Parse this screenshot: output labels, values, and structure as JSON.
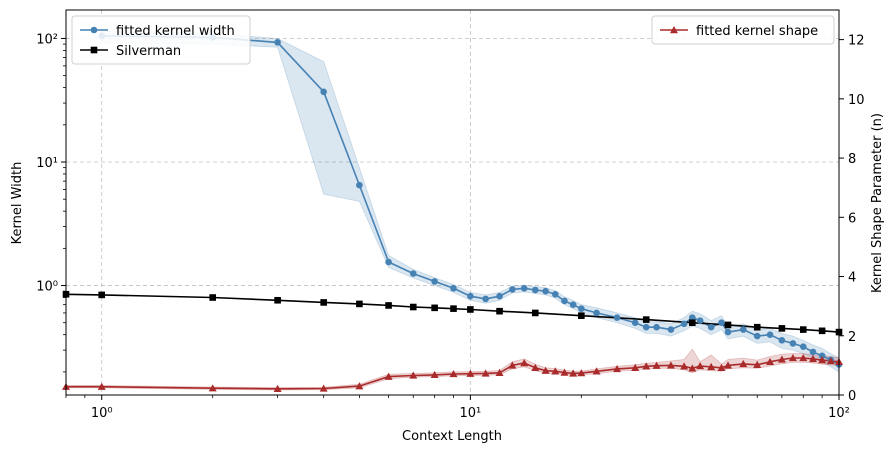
{
  "chart_data": {
    "type": "line",
    "xlabel": "Context Length",
    "ylabel_left": "Kernel Width",
    "ylabel_right": "Kernel Shape Parameter (n)",
    "x_scale": "log",
    "xlim": [
      0.8,
      100
    ],
    "y_left_scale": "log",
    "y_left_lim": [
      0.13,
      170
    ],
    "y_right_lim": [
      0,
      13
    ],
    "x_ticks": [
      {
        "v": 1,
        "label": "10⁰"
      },
      {
        "v": 10,
        "label": "10¹"
      },
      {
        "v": 100,
        "label": "10²"
      }
    ],
    "y_left_ticks": [
      {
        "v": 1,
        "label": "10⁰"
      },
      {
        "v": 10,
        "label": "10¹"
      },
      {
        "v": 100,
        "label": "10²"
      }
    ],
    "y_right_ticks": [
      0,
      2,
      4,
      6,
      8,
      10,
      12
    ],
    "grid": true,
    "legend_left": "top-left",
    "legend_right": "top-right",
    "series": [
      {
        "name": "fitted kernel width",
        "axis": "left",
        "color": "#4682b4",
        "marker": "circle",
        "x": [
          1,
          2,
          3,
          4,
          5,
          6,
          7,
          8,
          9,
          10,
          11,
          12,
          13,
          14,
          15,
          16,
          17,
          18,
          19,
          20,
          22,
          25,
          28,
          30,
          32,
          35,
          38,
          40,
          42,
          45,
          48,
          50,
          55,
          60,
          65,
          70,
          75,
          80,
          85,
          90,
          95,
          100
        ],
        "y": [
          105,
          102,
          93,
          37,
          6.5,
          1.55,
          1.25,
          1.08,
          0.95,
          0.82,
          0.78,
          0.82,
          0.93,
          0.95,
          0.92,
          0.9,
          0.85,
          0.75,
          0.7,
          0.65,
          0.6,
          0.55,
          0.5,
          0.46,
          0.46,
          0.44,
          0.49,
          0.55,
          0.52,
          0.46,
          0.5,
          0.42,
          0.44,
          0.39,
          0.4,
          0.36,
          0.34,
          0.32,
          0.29,
          0.27,
          0.25,
          0.23
        ],
        "band_low": [
          92,
          90,
          85,
          5.5,
          4.8,
          1.4,
          1.15,
          1.0,
          0.88,
          0.76,
          0.72,
          0.76,
          0.87,
          0.89,
          0.86,
          0.84,
          0.79,
          0.7,
          0.65,
          0.6,
          0.55,
          0.5,
          0.45,
          0.41,
          0.41,
          0.39,
          0.43,
          0.47,
          0.45,
          0.4,
          0.44,
          0.37,
          0.39,
          0.34,
          0.35,
          0.31,
          0.3,
          0.28,
          0.26,
          0.24,
          0.22,
          0.2
        ],
        "band_high": [
          115,
          110,
          100,
          65,
          9,
          1.75,
          1.35,
          1.16,
          1.02,
          0.88,
          0.84,
          0.88,
          0.99,
          1.01,
          0.98,
          0.96,
          0.91,
          0.81,
          0.76,
          0.7,
          0.66,
          0.6,
          0.55,
          0.51,
          0.51,
          0.49,
          0.55,
          0.62,
          0.59,
          0.52,
          0.57,
          0.47,
          0.49,
          0.44,
          0.45,
          0.41,
          0.39,
          0.36,
          0.33,
          0.31,
          0.28,
          0.26
        ]
      },
      {
        "name": "Silverman",
        "axis": "left",
        "color": "#000000",
        "marker": "square",
        "x": [
          0.8,
          1,
          2,
          3,
          4,
          5,
          6,
          7,
          8,
          9,
          10,
          12,
          15,
          20,
          30,
          40,
          50,
          60,
          70,
          80,
          90,
          100
        ],
        "y": [
          0.85,
          0.84,
          0.8,
          0.76,
          0.73,
          0.71,
          0.69,
          0.67,
          0.66,
          0.65,
          0.64,
          0.62,
          0.6,
          0.57,
          0.53,
          0.5,
          0.48,
          0.46,
          0.45,
          0.44,
          0.43,
          0.42
        ]
      },
      {
        "name": "fitted kernel shape",
        "axis": "right",
        "color": "#aa2b2b",
        "marker": "triangle",
        "x": [
          0.8,
          1,
          2,
          3,
          4,
          5,
          6,
          7,
          8,
          9,
          10,
          11,
          12,
          13,
          14,
          15,
          16,
          17,
          18,
          19,
          20,
          22,
          25,
          28,
          30,
          32,
          35,
          38,
          40,
          42,
          45,
          48,
          50,
          55,
          60,
          65,
          70,
          75,
          80,
          85,
          90,
          95,
          100
        ],
        "y": [
          0.28,
          0.28,
          0.23,
          0.21,
          0.22,
          0.3,
          0.62,
          0.66,
          0.68,
          0.71,
          0.72,
          0.73,
          0.75,
          1.0,
          1.08,
          0.92,
          0.82,
          0.8,
          0.76,
          0.73,
          0.74,
          0.8,
          0.88,
          0.92,
          0.97,
          0.99,
          1.0,
          0.97,
          0.9,
          0.98,
          0.95,
          0.92,
          1.0,
          1.05,
          1.02,
          1.12,
          1.2,
          1.25,
          1.25,
          1.22,
          1.18,
          1.15,
          1.12
        ],
        "band_low": [
          0.24,
          0.24,
          0.19,
          0.17,
          0.18,
          0.24,
          0.55,
          0.6,
          0.62,
          0.65,
          0.66,
          0.67,
          0.68,
          0.88,
          0.95,
          0.82,
          0.74,
          0.72,
          0.7,
          0.67,
          0.68,
          0.72,
          0.8,
          0.84,
          0.88,
          0.9,
          0.9,
          0.85,
          0.75,
          0.85,
          0.82,
          0.8,
          0.88,
          0.92,
          0.9,
          0.98,
          1.05,
          1.1,
          1.1,
          1.08,
          1.04,
          1.02,
          0.98
        ],
        "band_high": [
          0.32,
          0.32,
          0.27,
          0.25,
          0.26,
          0.36,
          0.7,
          0.73,
          0.75,
          0.78,
          0.79,
          0.8,
          0.83,
          1.12,
          1.22,
          1.04,
          0.92,
          0.89,
          0.84,
          0.8,
          0.81,
          0.88,
          0.97,
          1.02,
          1.07,
          1.1,
          1.15,
          1.2,
          1.55,
          1.12,
          1.35,
          1.05,
          1.2,
          1.25,
          1.18,
          1.3,
          1.38,
          1.4,
          1.4,
          1.35,
          1.32,
          1.3,
          1.26
        ]
      }
    ]
  }
}
